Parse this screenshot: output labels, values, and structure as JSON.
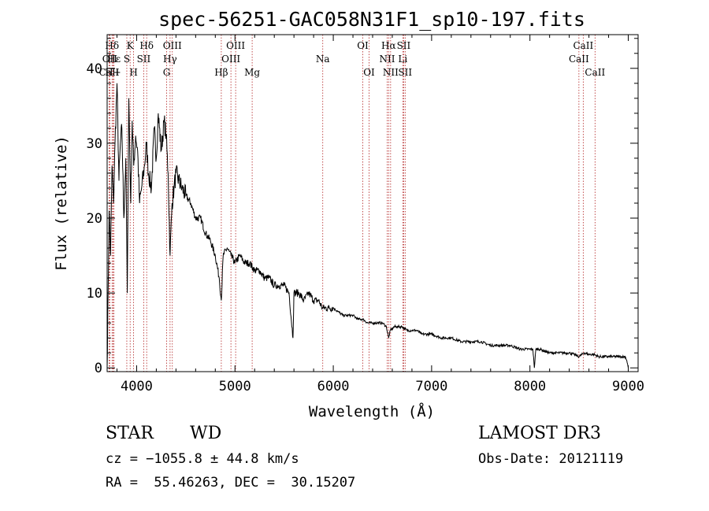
{
  "chart_data": {
    "type": "line",
    "title": "spec-56251-GAC058N31F1_sp10-197.fits",
    "xlabel": "Wavelength (Å)",
    "ylabel": "Flux (relative)",
    "xlim": [
      3700,
      9100
    ],
    "ylim": [
      -0.5,
      44.5
    ],
    "xticks": [
      4000,
      5000,
      6000,
      7000,
      8000,
      9000
    ],
    "yticks": [
      0,
      10,
      20,
      30,
      40
    ],
    "grid": false,
    "legend": "none",
    "series": [
      {
        "name": "spectrum",
        "color": "#000000",
        "x": [
          3700,
          3710,
          3720,
          3735,
          3750,
          3765,
          3780,
          3800,
          3820,
          3835,
          3850,
          3870,
          3890,
          3905,
          3920,
          3940,
          3955,
          3970,
          3990,
          4010,
          4030,
          4050,
          4080,
          4100,
          4120,
          4150,
          4180,
          4200,
          4220,
          4250,
          4280,
          4300,
          4320,
          4340,
          4360,
          4380,
          4400,
          4430,
          4460,
          4500,
          4550,
          4600,
          4650,
          4700,
          4750,
          4800,
          4840,
          4861,
          4880,
          4920,
          4960,
          5000,
          5050,
          5100,
          5150,
          5200,
          5250,
          5300,
          5350,
          5400,
          5450,
          5500,
          5550,
          5590,
          5600,
          5650,
          5700,
          5750,
          5800,
          5850,
          5890,
          5950,
          6000,
          6050,
          6100,
          6150,
          6200,
          6250,
          6300,
          6350,
          6400,
          6450,
          6500,
          6540,
          6563,
          6580,
          6620,
          6650,
          6700,
          6750,
          6800,
          6850,
          6900,
          7000,
          7100,
          7200,
          7300,
          7400,
          7500,
          7600,
          7700,
          7800,
          7900,
          8000,
          8030,
          8045,
          8060,
          8100,
          8200,
          8300,
          8400,
          8450,
          8500,
          8550,
          8600,
          8650,
          8700,
          8800,
          8900,
          8970,
          8985,
          9000
        ],
        "y": [
          0,
          10,
          21,
          15,
          27,
          22,
          30,
          38,
          25,
          30,
          32,
          20,
          28,
          10,
          36,
          22,
          33,
          27,
          31,
          29,
          22,
          24,
          27,
          30,
          26,
          24,
          32,
          28,
          34,
          29,
          33,
          31,
          26,
          15,
          22,
          24,
          26,
          25,
          24,
          23,
          22,
          20,
          20,
          18,
          17,
          15,
          12,
          9,
          15,
          16,
          15,
          14,
          15,
          14,
          14,
          13,
          13,
          12,
          12,
          11,
          11,
          11,
          10,
          4,
          10,
          10,
          9,
          10,
          9,
          9,
          8,
          8,
          8,
          7.5,
          7,
          7,
          7,
          6.5,
          6.5,
          6,
          6,
          6,
          6,
          5.5,
          4,
          5,
          5.5,
          5.5,
          5.5,
          5,
          5,
          5,
          4.5,
          4.5,
          4,
          4,
          3.5,
          3.5,
          3.5,
          3,
          3,
          3,
          2.5,
          2.5,
          2.5,
          0,
          2.5,
          2.5,
          2,
          2,
          2,
          1.8,
          1.5,
          2,
          1.8,
          1.8,
          1.5,
          1.5,
          1.5,
          1.5,
          1,
          0
        ]
      }
    ],
    "lines": [
      {
        "label": "Hδ",
        "x": 3750,
        "row": 0
      },
      {
        "label": "OII",
        "x": 3727,
        "row": 1
      },
      {
        "label": "Hε",
        "x": 3770,
        "row": 1
      },
      {
        "label": "CaII",
        "x": 3720,
        "row": 2
      },
      {
        "label": "H+",
        "x": 3760,
        "row": 2
      },
      {
        "label": "K",
        "x": 3934,
        "row": 0
      },
      {
        "label": "H",
        "x": 3969,
        "row": 2
      },
      {
        "label": "S",
        "x": 3900,
        "row": 1
      },
      {
        "label": "SII",
        "x": 4072,
        "row": 1
      },
      {
        "label": "Hδ",
        "x": 4102,
        "row": 0
      },
      {
        "label": "OIII",
        "x": 4363,
        "row": 0
      },
      {
        "label": "Hγ",
        "x": 4340,
        "row": 1
      },
      {
        "label": "G",
        "x": 4305,
        "row": 2
      },
      {
        "label": "Hβ",
        "x": 4861,
        "row": 2
      },
      {
        "label": "OIII",
        "x": 5007,
        "row": 0
      },
      {
        "label": "OIII",
        "x": 4959,
        "row": 1
      },
      {
        "label": "Mg",
        "x": 5175,
        "row": 2
      },
      {
        "label": "Na",
        "x": 5893,
        "row": 1
      },
      {
        "label": "OI",
        "x": 6300,
        "row": 0
      },
      {
        "label": "OI",
        "x": 6364,
        "row": 2
      },
      {
        "label": "Hα",
        "x": 6563,
        "row": 0
      },
      {
        "label": "NII",
        "x": 6548,
        "row": 1
      },
      {
        "label": "NII",
        "x": 6583,
        "row": 2
      },
      {
        "label": "SII",
        "x": 6716,
        "row": 0
      },
      {
        "label": "Li",
        "x": 6707,
        "row": 1
      },
      {
        "label": "SII",
        "x": 6731,
        "row": 2
      },
      {
        "label": "CaII",
        "x": 8542,
        "row": 0
      },
      {
        "label": "CaII",
        "x": 8498,
        "row": 1
      },
      {
        "label": "CaII",
        "x": 8662,
        "row": 2
      }
    ]
  },
  "info": {
    "class": "STAR",
    "subclass": "WD",
    "survey": "LAMOST DR3",
    "cz": "cz = −1055.8 ± 44.8 km/s",
    "obs_date": "Obs-Date: 20121119",
    "radec": "RA =  55.46263, DEC =  30.15207"
  }
}
